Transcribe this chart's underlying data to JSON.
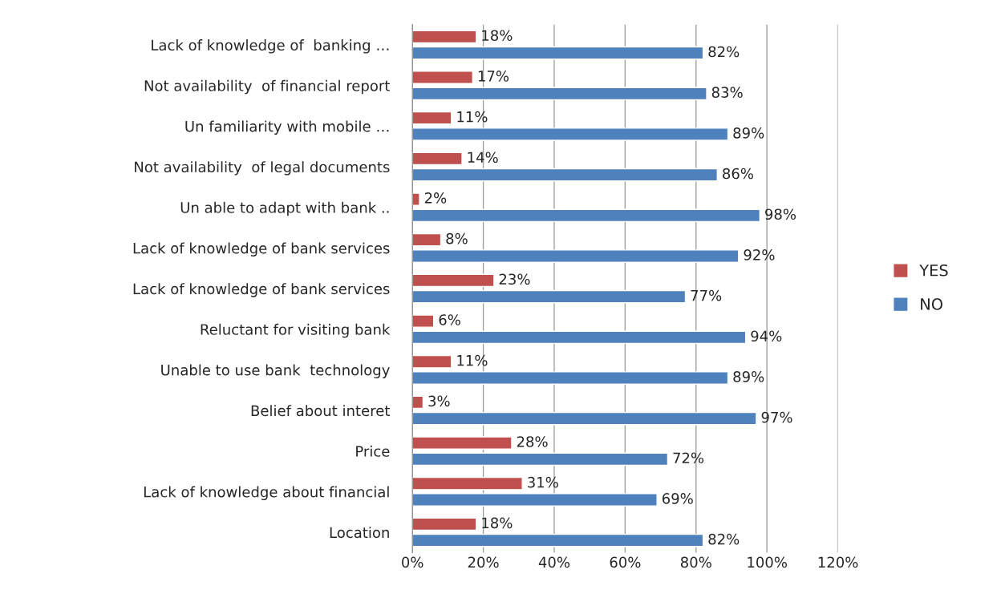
{
  "chart_data": {
    "type": "bar",
    "orientation": "horizontal",
    "categories": [
      "Lack of knowledge of  banking …",
      "Not availability  of financial report",
      "Un familiarity with mobile …",
      "Not availability  of legal documents",
      "Un able to adapt with bank ..",
      "Lack of knowledge of bank services",
      "Lack of knowledge of bank services",
      "Reluctant for visiting bank",
      "Unable to use bank  technology",
      "Belief about interet",
      "Price",
      "Lack of knowledge about financial",
      "Location"
    ],
    "series": [
      {
        "name": "YES",
        "color": "#c0504d",
        "values": [
          18,
          17,
          11,
          14,
          2,
          8,
          23,
          6,
          11,
          3,
          28,
          31,
          18
        ],
        "value_labels": [
          "18%",
          "17%",
          "11%",
          "14%",
          "2%",
          "8%",
          "23%",
          "6%",
          "11%",
          "3%",
          "28%",
          "31%",
          "18%"
        ]
      },
      {
        "name": "NO",
        "color": "#4f81bd",
        "values": [
          82,
          83,
          89,
          86,
          98,
          92,
          77,
          94,
          89,
          97,
          72,
          69,
          82
        ],
        "value_labels": [
          "82%",
          "83%",
          "89%",
          "86%",
          "98%",
          "92%",
          "77%",
          "94%",
          "89%",
          "97%",
          "72%",
          "69%",
          "82%"
        ]
      }
    ],
    "xlim": [
      0,
      120
    ],
    "xticks": [
      {
        "value": 0,
        "label": "0%"
      },
      {
        "value": 20,
        "label": "20%"
      },
      {
        "value": 40,
        "label": "40%"
      },
      {
        "value": 60,
        "label": "60%"
      },
      {
        "value": 80,
        "label": "80%"
      },
      {
        "value": 100,
        "label": "100%"
      },
      {
        "value": 120,
        "label": "120%"
      }
    ],
    "grid": "x",
    "legend": "right"
  }
}
